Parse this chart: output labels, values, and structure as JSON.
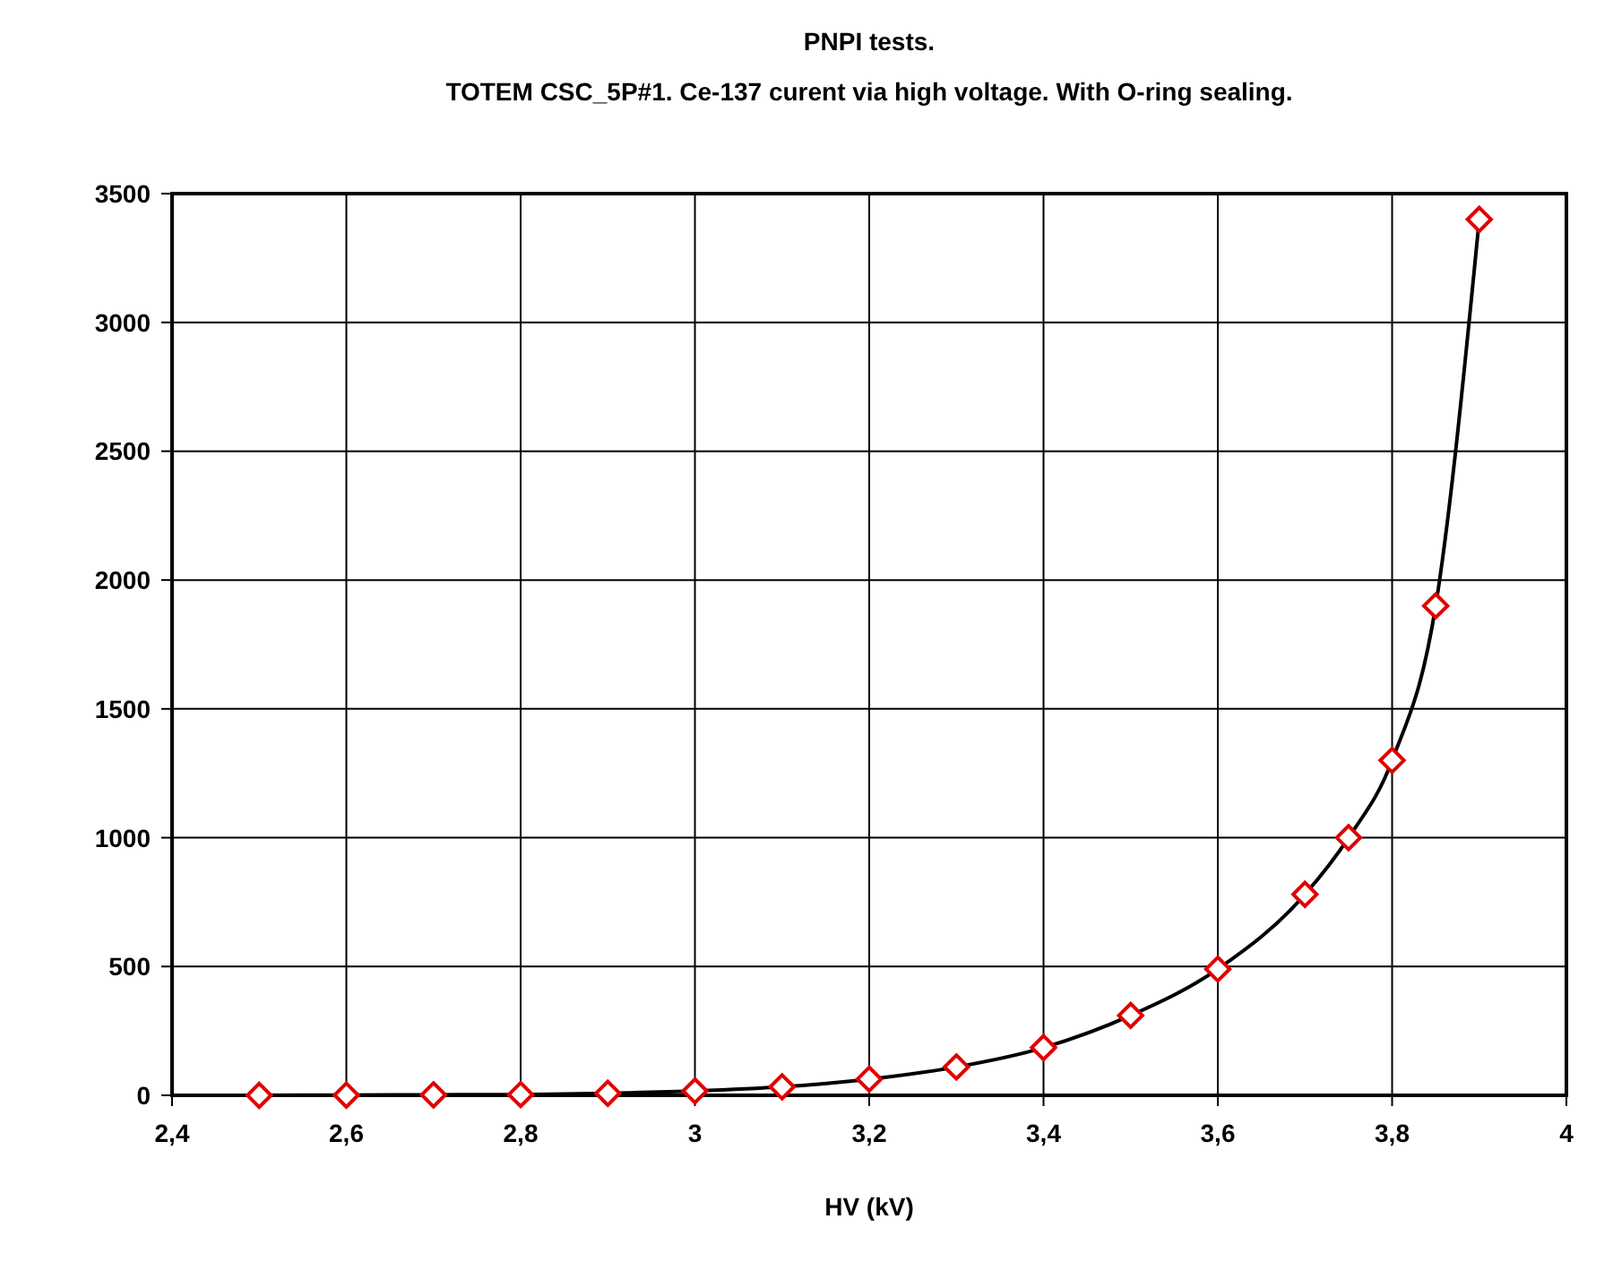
{
  "chart_data": {
    "type": "line",
    "title": "PNPI tests.",
    "subtitle": "TOTEM CSC_5P#1.    Ce-137 curent via high voltage.    With O-ring sealing.",
    "xlabel": "HV (kV)",
    "x": [
      2.5,
      2.6,
      2.7,
      2.8,
      2.9,
      3.0,
      3.1,
      3.2,
      3.3,
      3.4,
      3.5,
      3.6,
      3.7,
      3.75,
      3.8,
      3.85,
      3.9
    ],
    "series": [
      {
        "color": "#e00000",
        "values": [
          0,
          1,
          2,
          3,
          8,
          17,
          33,
          63,
          110,
          185,
          310,
          490,
          780,
          1000,
          1300,
          1900,
          3400
        ]
      }
    ],
    "xlim": [
      2.4,
      4
    ],
    "xticks": [
      {
        "value": 2.4,
        "label": "2,4"
      },
      {
        "value": 2.6,
        "label": "2,6"
      },
      {
        "value": 2.8,
        "label": "2,8"
      },
      3,
      {
        "value": 3.2,
        "label": "3,2"
      },
      {
        "value": 3.4,
        "label": "3,4"
      },
      {
        "value": 3.6,
        "label": "3,6"
      },
      {
        "value": 3.8,
        "label": "3,8"
      },
      4
    ],
    "ylim": [
      0,
      3500
    ],
    "yticks": [
      0,
      500,
      1000,
      1500,
      2000,
      2500,
      3000,
      3500
    ],
    "grid": true,
    "marker": "diamond",
    "line_style": "solid"
  }
}
